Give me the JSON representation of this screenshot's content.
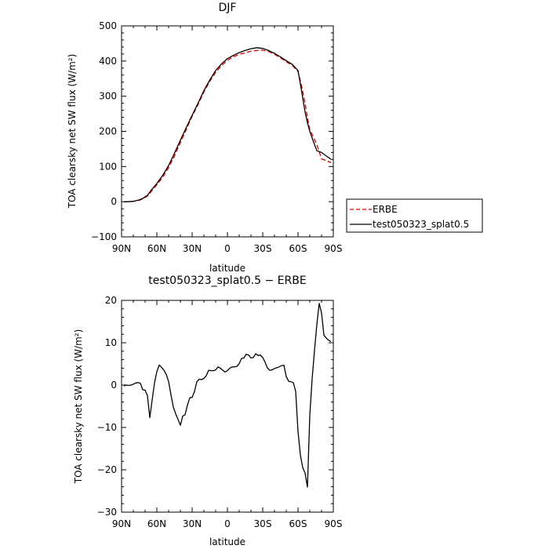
{
  "chart_data": [
    {
      "type": "line",
      "title": "DJF",
      "xlabel": "latitude",
      "ylabel": "TOA clearsky net SW flux (W/m²)",
      "xlim": [
        90,
        -90
      ],
      "ylim": [
        -100,
        500
      ],
      "x_ticks": [
        90,
        60,
        30,
        0,
        -30,
        -60,
        -90
      ],
      "x_tick_labels": [
        "90N",
        "60N",
        "30N",
        "0",
        "30S",
        "60S",
        "90S"
      ],
      "y_ticks": [
        -100,
        0,
        100,
        200,
        300,
        400,
        500
      ],
      "y_tick_labels": [
        "−100",
        "0",
        "100",
        "200",
        "300",
        "400",
        "500"
      ],
      "legend": {
        "placement": "outside-right"
      },
      "series": [
        {
          "name": "ERBE",
          "color": "#dd0000",
          "dash": "dashed",
          "x": [
            88,
            85,
            80,
            75,
            72,
            68,
            65,
            60,
            55,
            50,
            45,
            40,
            35,
            30,
            25,
            20,
            15,
            10,
            5,
            0,
            -5,
            -10,
            -15,
            -20,
            -25,
            -30,
            -35,
            -40,
            -45,
            -50,
            -55,
            -60,
            -63,
            -66,
            -68,
            -70,
            -73,
            -76,
            -80,
            -84,
            -88
          ],
          "y": [
            0,
            0,
            1,
            4,
            8,
            16,
            28,
            48,
            70,
            97,
            130,
            168,
            205,
            243,
            276,
            312,
            342,
            368,
            387,
            402,
            412,
            419,
            423,
            428,
            430,
            431,
            427,
            419,
            409,
            398,
            388,
            370,
            330,
            280,
            240,
            205,
            185,
            162,
            122,
            117,
            111
          ]
        },
        {
          "name": "test050323_splat0.5",
          "color": "#000000",
          "dash": "solid",
          "x": [
            88,
            85,
            80,
            75,
            72,
            68,
            65,
            60,
            55,
            50,
            45,
            40,
            35,
            30,
            25,
            20,
            15,
            10,
            5,
            0,
            -5,
            -10,
            -15,
            -20,
            -25,
            -30,
            -35,
            -40,
            -45,
            -50,
            -55,
            -60,
            -63,
            -66,
            -68,
            -70,
            -73,
            -76,
            -80,
            -84,
            -88
          ],
          "y": [
            0,
            0,
            1,
            5,
            9,
            18,
            32,
            52,
            75,
            103,
            138,
            175,
            211,
            246,
            280,
            316,
            346,
            373,
            392,
            407,
            416,
            424,
            430,
            435,
            438,
            436,
            430,
            422,
            412,
            401,
            391,
            373,
            315,
            255,
            225,
            200,
            172,
            145,
            140,
            130,
            121
          ]
        }
      ]
    },
    {
      "type": "line",
      "title": "test050323_splat0.5 − ERBE",
      "xlabel": "latitude",
      "ylabel": "TOA clearsky net SW flux (W/m²)",
      "xlim": [
        90,
        -90
      ],
      "ylim": [
        -30,
        20
      ],
      "x_ticks": [
        90,
        60,
        30,
        0,
        -30,
        -60,
        -90
      ],
      "x_tick_labels": [
        "90N",
        "60N",
        "30N",
        "0",
        "30S",
        "60S",
        "90S"
      ],
      "y_ticks": [
        -30,
        -20,
        -10,
        0,
        10,
        20
      ],
      "y_tick_labels": [
        "−30",
        "−20",
        "−10",
        "0",
        "10",
        "20"
      ],
      "series": [
        {
          "color": "#000000",
          "dash": "solid",
          "x": [
            88,
            86,
            84,
            82,
            80,
            78,
            76,
            74,
            72,
            70,
            68,
            66,
            64,
            62,
            60,
            58,
            56,
            54,
            52,
            50,
            48,
            46,
            44,
            42,
            40,
            38,
            36,
            34,
            32,
            30,
            28,
            26,
            24,
            22,
            20,
            18,
            16,
            14,
            12,
            10,
            8,
            6,
            4,
            2,
            0,
            -2,
            -4,
            -6,
            -8,
            -10,
            -12,
            -14,
            -16,
            -18,
            -20,
            -22,
            -24,
            -26,
            -28,
            -30,
            -32,
            -34,
            -36,
            -38,
            -40,
            -42,
            -44,
            -46,
            -48,
            -50,
            -52,
            -54,
            -56,
            -58,
            -60,
            -62,
            -64,
            -66,
            -68,
            -70,
            -72,
            -74,
            -76,
            -78,
            -80,
            -82,
            -84,
            -86,
            -88
          ],
          "y": [
            -0.2,
            0,
            -0.1,
            0,
            0.2,
            0.5,
            0.6,
            0.4,
            -1.1,
            -1.2,
            -2.5,
            -7.7,
            -3.5,
            0.5,
            3.2,
            4.7,
            4.2,
            3.5,
            2.5,
            0.8,
            -2.3,
            -5.2,
            -6.8,
            -8.1,
            -9.5,
            -7.3,
            -7.0,
            -4.7,
            -3.0,
            -2.9,
            -1.5,
            0.8,
            1.4,
            1.3,
            1.6,
            2.2,
            3.5,
            3.4,
            3.4,
            3.6,
            4.3,
            4.0,
            3.5,
            3.1,
            3.4,
            4.0,
            4.3,
            4.3,
            4.4,
            5.1,
            6.3,
            6.4,
            7.3,
            7.1,
            6.4,
            6.5,
            7.4,
            7.0,
            7.1,
            6.5,
            5.4,
            4.0,
            3.5,
            3.6,
            3.9,
            4.1,
            4.3,
            4.6,
            4.7,
            2.0,
            0.9,
            0.8,
            0.6,
            -1.5,
            -11.0,
            -16.5,
            -19.5,
            -20.8,
            -24.1,
            -7.1,
            1.5,
            8.2,
            14.3,
            19.3,
            17.0,
            11.8,
            11.1,
            10.6,
            10.3
          ]
        }
      ]
    }
  ]
}
